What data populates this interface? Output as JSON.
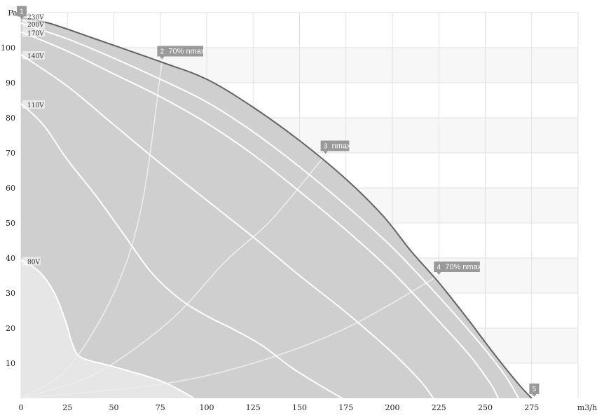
{
  "chart_data": {
    "type": "line",
    "xlabel": "m3/h",
    "ylabel": "Pa",
    "xlim": [
      0,
      300
    ],
    "ylim": [
      0,
      110
    ],
    "x_ticks": [
      0,
      25,
      50,
      75,
      100,
      125,
      150,
      175,
      200,
      225,
      250,
      275
    ],
    "y_ticks": [
      10,
      20,
      30,
      40,
      50,
      60,
      70,
      80,
      90,
      100
    ],
    "grid": true,
    "colors": {
      "envelope_fill": "#cfcfcf",
      "envelope_line": "#646464",
      "curve": "#ffffff",
      "low_fill": "#e6e6e6",
      "marker": "#999999",
      "band": "#f7f7f7",
      "grid": "#e2e2e2"
    },
    "series": [
      {
        "name": "230V",
        "envelope": true,
        "points": [
          [
            0,
            108.5
          ],
          [
            15,
            107
          ],
          [
            40,
            102.5
          ],
          [
            75,
            96
          ],
          [
            100,
            91
          ],
          [
            125,
            83
          ],
          [
            150,
            73.5
          ],
          [
            175,
            62.5
          ],
          [
            195,
            52
          ],
          [
            210,
            42
          ],
          [
            225,
            33
          ],
          [
            240,
            23
          ],
          [
            255,
            12.5
          ],
          [
            268,
            4
          ],
          [
            275,
            0
          ]
        ]
      },
      {
        "name": "200V",
        "points": [
          [
            0,
            107
          ],
          [
            25,
            102.5
          ],
          [
            50,
            97
          ],
          [
            75,
            91
          ],
          [
            100,
            84.5
          ],
          [
            125,
            76
          ],
          [
            150,
            66
          ],
          [
            175,
            55
          ],
          [
            200,
            43
          ],
          [
            225,
            29
          ],
          [
            245,
            17
          ],
          [
            260,
            7
          ],
          [
            268,
            0
          ]
        ]
      },
      {
        "name": "170V",
        "points": [
          [
            0,
            104.5
          ],
          [
            25,
            99
          ],
          [
            50,
            92.5
          ],
          [
            75,
            86
          ],
          [
            100,
            78.5
          ],
          [
            125,
            69.5
          ],
          [
            150,
            59
          ],
          [
            175,
            48
          ],
          [
            200,
            36
          ],
          [
            225,
            22
          ],
          [
            242,
            12
          ],
          [
            253,
            4
          ],
          [
            257,
            0
          ]
        ]
      },
      {
        "name": "140V",
        "points": [
          [
            0,
            98
          ],
          [
            25,
            89
          ],
          [
            50,
            78
          ],
          [
            75,
            67
          ],
          [
            100,
            56.5
          ],
          [
            125,
            46
          ],
          [
            150,
            35
          ],
          [
            175,
            24.5
          ],
          [
            200,
            13
          ],
          [
            215,
            5
          ],
          [
            222,
            0
          ]
        ]
      },
      {
        "name": "110V",
        "points": [
          [
            0,
            84
          ],
          [
            12,
            78
          ],
          [
            25,
            68
          ],
          [
            40,
            58
          ],
          [
            55,
            47
          ],
          [
            70,
            36
          ],
          [
            85,
            28.5
          ],
          [
            100,
            23.5
          ],
          [
            115,
            19.5
          ],
          [
            130,
            15
          ],
          [
            145,
            9
          ],
          [
            160,
            4
          ],
          [
            173,
            0
          ]
        ]
      },
      {
        "name": "80V",
        "points": [
          [
            0,
            39.5
          ],
          [
            10,
            36
          ],
          [
            18,
            30
          ],
          [
            24,
            22
          ],
          [
            28,
            15
          ],
          [
            33,
            11.5
          ],
          [
            50,
            9
          ],
          [
            75,
            5
          ],
          [
            90,
            1
          ],
          [
            93,
            0
          ]
        ]
      }
    ],
    "operating_points": [
      {
        "id": "1",
        "x": 0,
        "y": 108.5
      },
      {
        "id": "2",
        "label": "70% nmax",
        "x": 76,
        "y": 96.5
      },
      {
        "id": "3",
        "label": "nmax",
        "x": 164,
        "y": 69.5
      },
      {
        "id": "4",
        "label": "70% nmax",
        "x": 225,
        "y": 35
      },
      {
        "id": "5",
        "x": 276,
        "y": 1
      }
    ],
    "system_curves": [
      {
        "points": [
          [
            0,
            0
          ],
          [
            25,
            8.5
          ],
          [
            50,
            30
          ],
          [
            65,
            55
          ],
          [
            76,
            96.5
          ]
        ]
      },
      {
        "points": [
          [
            0,
            0
          ],
          [
            40,
            7
          ],
          [
            80,
            22
          ],
          [
            110,
            39
          ],
          [
            135,
            51
          ],
          [
            164,
            69.5
          ]
        ]
      },
      {
        "points": [
          [
            0,
            0
          ],
          [
            75,
            4
          ],
          [
            125,
            10
          ],
          [
            175,
            20
          ],
          [
            225,
            35
          ]
        ]
      }
    ]
  }
}
